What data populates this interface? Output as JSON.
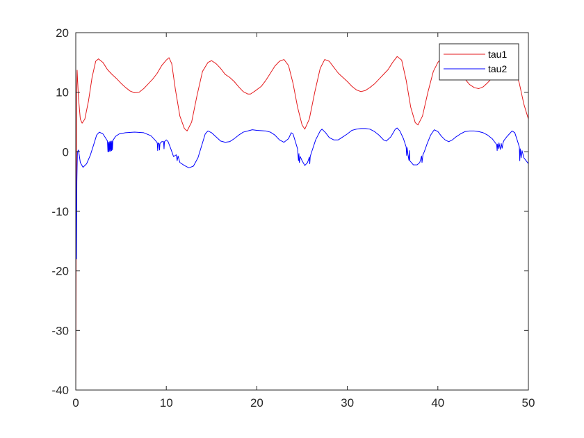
{
  "chart_data": {
    "type": "line",
    "title": "",
    "xlabel": "",
    "ylabel": "",
    "xlim": [
      0,
      50
    ],
    "ylim": [
      -40,
      20
    ],
    "x_ticks": [
      0,
      10,
      20,
      30,
      40,
      50
    ],
    "y_ticks": [
      -40,
      -30,
      -20,
      -10,
      0,
      10,
      20
    ],
    "x_tick_labels": [
      "0",
      "10",
      "20",
      "30",
      "40",
      "50"
    ],
    "y_tick_labels": [
      "-40",
      "-30",
      "-20",
      "-10",
      "0",
      "10",
      "20"
    ],
    "grid": false,
    "legend_position": "top-right",
    "series": [
      {
        "name": "tau1",
        "color": "#e41a1c",
        "points": [
          [
            0.0,
            -40
          ],
          [
            0.05,
            -10
          ],
          [
            0.1,
            10
          ],
          [
            0.15,
            13.7
          ],
          [
            0.2,
            12
          ],
          [
            0.3,
            9
          ],
          [
            0.5,
            5.5
          ],
          [
            0.7,
            4.8
          ],
          [
            1.0,
            5.5
          ],
          [
            1.4,
            8.5
          ],
          [
            1.8,
            12.5
          ],
          [
            2.2,
            15.2
          ],
          [
            2.5,
            15.6
          ],
          [
            3.0,
            15.0
          ],
          [
            3.5,
            13.8
          ],
          [
            4.0,
            13.0
          ],
          [
            4.5,
            12.3
          ],
          [
            5.0,
            11.5
          ],
          [
            5.5,
            10.8
          ],
          [
            6.0,
            10.2
          ],
          [
            6.5,
            9.9
          ],
          [
            7.0,
            10.0
          ],
          [
            7.5,
            10.6
          ],
          [
            8.0,
            11.4
          ],
          [
            8.5,
            12.2
          ],
          [
            9.0,
            13.2
          ],
          [
            9.5,
            14.5
          ],
          [
            10.0,
            15.4
          ],
          [
            10.3,
            15.8
          ],
          [
            10.6,
            14.8
          ],
          [
            11.0,
            10.5
          ],
          [
            11.5,
            6.0
          ],
          [
            12.0,
            3.9
          ],
          [
            12.3,
            3.5
          ],
          [
            12.8,
            5.0
          ],
          [
            13.4,
            9.5
          ],
          [
            14.0,
            13.5
          ],
          [
            14.6,
            15.0
          ],
          [
            15.0,
            15.3
          ],
          [
            15.5,
            14.8
          ],
          [
            16.0,
            14.0
          ],
          [
            16.5,
            13.0
          ],
          [
            17.0,
            12.5
          ],
          [
            17.5,
            11.8
          ],
          [
            18.0,
            10.9
          ],
          [
            18.5,
            10.1
          ],
          [
            19.0,
            9.7
          ],
          [
            19.3,
            9.7
          ],
          [
            19.8,
            10.2
          ],
          [
            20.5,
            11.0
          ],
          [
            21.0,
            12.0
          ],
          [
            21.5,
            13.2
          ],
          [
            22.0,
            14.4
          ],
          [
            22.5,
            15.2
          ],
          [
            23.0,
            15.5
          ],
          [
            23.5,
            14.5
          ],
          [
            24.0,
            11.5
          ],
          [
            24.5,
            7.5
          ],
          [
            25.0,
            4.5
          ],
          [
            25.3,
            3.8
          ],
          [
            25.8,
            5.5
          ],
          [
            26.4,
            10.0
          ],
          [
            27.0,
            14.0
          ],
          [
            27.5,
            15.5
          ],
          [
            28.0,
            15.2
          ],
          [
            28.5,
            14.2
          ],
          [
            29.0,
            13.2
          ],
          [
            29.5,
            12.5
          ],
          [
            30.0,
            11.8
          ],
          [
            30.5,
            11.0
          ],
          [
            31.0,
            10.4
          ],
          [
            31.5,
            10.1
          ],
          [
            32.0,
            10.3
          ],
          [
            32.5,
            10.8
          ],
          [
            33.0,
            11.4
          ],
          [
            33.5,
            12.2
          ],
          [
            34.0,
            13.0
          ],
          [
            34.5,
            13.8
          ],
          [
            35.0,
            15.0
          ],
          [
            35.5,
            16.0
          ],
          [
            36.0,
            15.4
          ],
          [
            36.5,
            12.0
          ],
          [
            37.0,
            7.5
          ],
          [
            37.5,
            4.9
          ],
          [
            37.8,
            4.5
          ],
          [
            38.3,
            6.0
          ],
          [
            38.9,
            10.0
          ],
          [
            39.5,
            13.5
          ],
          [
            40.0,
            15.0
          ],
          [
            40.3,
            15.6
          ],
          [
            40.8,
            15.2
          ],
          [
            41.3,
            14.6
          ],
          [
            42.0,
            14.0
          ],
          [
            42.5,
            13.0
          ],
          [
            43.0,
            12.2
          ],
          [
            43.5,
            11.3
          ],
          [
            44.0,
            10.8
          ],
          [
            44.5,
            10.6
          ],
          [
            45.0,
            10.9
          ],
          [
            45.5,
            11.6
          ],
          [
            46.0,
            12.4
          ],
          [
            46.5,
            13.2
          ],
          [
            47.0,
            14.0
          ],
          [
            47.5,
            14.6
          ],
          [
            48.0,
            15.0
          ],
          [
            48.5,
            14.0
          ],
          [
            49.0,
            11.5
          ],
          [
            49.5,
            8.0
          ],
          [
            50.0,
            5.5
          ]
        ]
      },
      {
        "name": "tau2",
        "color": "#0000ff",
        "points": [
          [
            0.0,
            0
          ],
          [
            0.05,
            -16
          ],
          [
            0.08,
            -18
          ],
          [
            0.12,
            -5
          ],
          [
            0.18,
            0
          ],
          [
            0.3,
            0.3
          ],
          [
            0.5,
            -1.8
          ],
          [
            0.8,
            -2.6
          ],
          [
            1.2,
            -2.0
          ],
          [
            1.6,
            -0.6
          ],
          [
            2.0,
            1.3
          ],
          [
            2.3,
            2.8
          ],
          [
            2.6,
            3.3
          ],
          [
            3.0,
            3.0
          ],
          [
            3.3,
            2.3
          ],
          [
            3.5,
            1.8
          ],
          [
            3.55,
            0.0
          ],
          [
            3.6,
            1.6
          ],
          [
            3.65,
            0.0
          ],
          [
            3.7,
            1.7
          ],
          [
            3.75,
            0.1
          ],
          [
            3.8,
            1.7
          ],
          [
            3.85,
            0.1
          ],
          [
            3.9,
            1.8
          ],
          [
            3.95,
            0.2
          ],
          [
            4.0,
            1.8
          ],
          [
            4.05,
            0.3
          ],
          [
            4.1,
            1.9
          ],
          [
            4.4,
            2.6
          ],
          [
            4.8,
            3.0
          ],
          [
            5.5,
            3.2
          ],
          [
            6.5,
            3.3
          ],
          [
            7.5,
            3.2
          ],
          [
            8.3,
            2.7
          ],
          [
            8.8,
            1.9
          ],
          [
            9.0,
            1.5
          ],
          [
            9.05,
            0.2
          ],
          [
            9.1,
            1.5
          ],
          [
            9.2,
            1.3
          ],
          [
            9.25,
            0.3
          ],
          [
            9.3,
            1.4
          ],
          [
            9.5,
            1.7
          ],
          [
            9.7,
            1.7
          ],
          [
            9.75,
            0.5
          ],
          [
            9.8,
            1.7
          ],
          [
            10.0,
            2.0
          ],
          [
            10.2,
            1.7
          ],
          [
            10.5,
            0.5
          ],
          [
            10.8,
            -0.8
          ],
          [
            11.1,
            -0.5
          ],
          [
            11.2,
            -1.5
          ],
          [
            11.3,
            -0.7
          ],
          [
            11.5,
            -1.8
          ],
          [
            12.0,
            -2.3
          ],
          [
            12.5,
            -2.7
          ],
          [
            13.0,
            -2.4
          ],
          [
            13.5,
            -1.0
          ],
          [
            14.0,
            1.5
          ],
          [
            14.3,
            3.0
          ],
          [
            14.6,
            3.5
          ],
          [
            15.0,
            3.2
          ],
          [
            15.5,
            2.5
          ],
          [
            16.0,
            1.8
          ],
          [
            16.5,
            1.6
          ],
          [
            17.0,
            1.7
          ],
          [
            17.5,
            2.2
          ],
          [
            18.0,
            2.8
          ],
          [
            18.5,
            3.3
          ],
          [
            19.0,
            3.5
          ],
          [
            19.5,
            3.7
          ],
          [
            20.0,
            3.6
          ],
          [
            21.0,
            3.5
          ],
          [
            21.5,
            3.3
          ],
          [
            22.0,
            2.8
          ],
          [
            22.5,
            2.0
          ],
          [
            23.0,
            1.6
          ],
          [
            23.5,
            2.2
          ],
          [
            23.8,
            3.2
          ],
          [
            24.0,
            3.0
          ],
          [
            24.3,
            1.5
          ],
          [
            24.5,
            0.5
          ],
          [
            24.6,
            -1.5
          ],
          [
            24.65,
            -0.3
          ],
          [
            24.7,
            -1.8
          ],
          [
            24.8,
            -0.8
          ],
          [
            25.0,
            -1.5
          ],
          [
            25.3,
            -2.3
          ],
          [
            25.6,
            -1.8
          ],
          [
            25.8,
            -0.9
          ],
          [
            25.85,
            -2.0
          ],
          [
            25.9,
            -0.8
          ],
          [
            26.0,
            -0.3
          ],
          [
            26.5,
            2.0
          ],
          [
            27.0,
            3.5
          ],
          [
            27.2,
            3.8
          ],
          [
            27.6,
            3.2
          ],
          [
            28.0,
            2.4
          ],
          [
            28.5,
            2.0
          ],
          [
            29.0,
            2.0
          ],
          [
            29.5,
            2.5
          ],
          [
            30.0,
            3.0
          ],
          [
            30.5,
            3.6
          ],
          [
            31.0,
            3.8
          ],
          [
            31.5,
            3.9
          ],
          [
            32.0,
            3.9
          ],
          [
            32.5,
            3.8
          ],
          [
            33.0,
            3.4
          ],
          [
            33.5,
            2.8
          ],
          [
            34.0,
            2.0
          ],
          [
            34.3,
            1.8
          ],
          [
            34.8,
            2.5
          ],
          [
            35.3,
            3.8
          ],
          [
            35.5,
            4.0
          ],
          [
            35.8,
            3.5
          ],
          [
            36.2,
            2.2
          ],
          [
            36.5,
            0.8
          ],
          [
            36.55,
            -0.6
          ],
          [
            36.6,
            0.7
          ],
          [
            36.7,
            -0.5
          ],
          [
            36.8,
            -1.4
          ],
          [
            36.85,
            0.2
          ],
          [
            36.9,
            -1.5
          ],
          [
            37.3,
            -2.2
          ],
          [
            37.7,
            -2.2
          ],
          [
            38.0,
            -1.8
          ],
          [
            38.2,
            -0.7
          ],
          [
            38.25,
            -1.8
          ],
          [
            38.35,
            -0.5
          ],
          [
            38.5,
            0.0
          ],
          [
            38.8,
            1.3
          ],
          [
            39.2,
            2.8
          ],
          [
            39.6,
            3.7
          ],
          [
            40.0,
            3.4
          ],
          [
            40.4,
            2.6
          ],
          [
            40.8,
            2.0
          ],
          [
            41.2,
            1.7
          ],
          [
            41.6,
            2.0
          ],
          [
            42.0,
            2.5
          ],
          [
            42.5,
            3.0
          ],
          [
            43.0,
            3.4
          ],
          [
            43.5,
            3.5
          ],
          [
            44.0,
            3.5
          ],
          [
            44.5,
            3.4
          ],
          [
            45.0,
            3.2
          ],
          [
            45.5,
            2.8
          ],
          [
            46.0,
            2.2
          ],
          [
            46.3,
            1.6
          ],
          [
            46.5,
            1.2
          ],
          [
            46.55,
            0.2
          ],
          [
            46.6,
            1.3
          ],
          [
            46.7,
            0.5
          ],
          [
            46.75,
            1.5
          ],
          [
            46.9,
            0.4
          ],
          [
            47.0,
            1.4
          ],
          [
            47.1,
            0.6
          ],
          [
            47.2,
            1.5
          ],
          [
            47.3,
            1.9
          ],
          [
            47.6,
            2.5
          ],
          [
            47.9,
            3.0
          ],
          [
            48.2,
            3.5
          ],
          [
            48.5,
            3.2
          ],
          [
            48.8,
            1.8
          ],
          [
            49.0,
            0.8
          ],
          [
            49.05,
            -1.5
          ],
          [
            49.1,
            0.5
          ],
          [
            49.2,
            -1.0
          ],
          [
            49.3,
            0.2
          ],
          [
            49.5,
            -1.0
          ],
          [
            50.0,
            -2.0
          ]
        ]
      }
    ]
  }
}
